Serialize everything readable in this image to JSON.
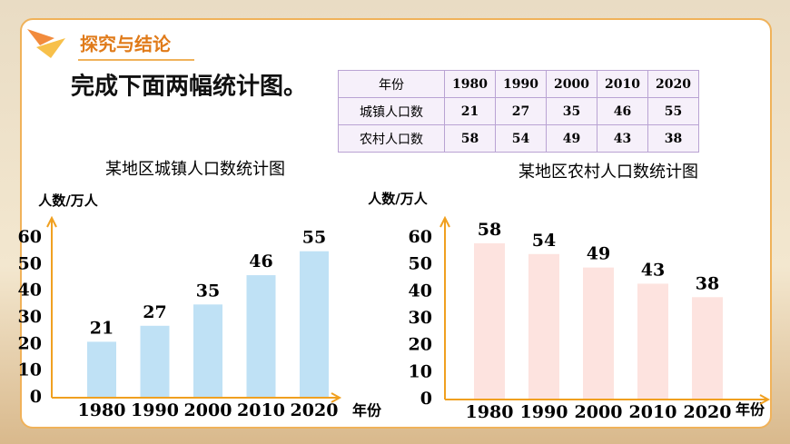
{
  "header": {
    "title": "探究与结论"
  },
  "instruction": "完成下面两幅统计图。",
  "table": {
    "rows": [
      [
        "年份",
        1980,
        1990,
        2000,
        2010,
        2020
      ],
      [
        "城镇人口数",
        21,
        27,
        35,
        46,
        55
      ],
      [
        "农村人口数",
        58,
        54,
        49,
        43,
        38
      ]
    ]
  },
  "chart_data": [
    {
      "type": "bar",
      "title": "某地区城镇人口数统计图",
      "y_label": "人数/万人",
      "x_label": "年份",
      "categories": [
        "1980",
        "1990",
        "2000",
        "2010",
        "2020"
      ],
      "values": [
        21,
        27,
        35,
        46,
        55
      ],
      "color": "#bfe1f5",
      "ylim": [
        0,
        60
      ],
      "yticks": [
        0,
        10,
        20,
        30,
        40,
        50,
        60
      ]
    },
    {
      "type": "bar",
      "title": "某地区农村人口数统计图",
      "y_label": "人数/万人",
      "x_label": "年份",
      "categories": [
        "1980",
        "1990",
        "2000",
        "2010",
        "2020"
      ],
      "values": [
        58,
        54,
        49,
        43,
        38
      ],
      "color": "#fde3df",
      "ylim": [
        0,
        60
      ],
      "yticks": [
        0,
        10,
        20,
        30,
        40,
        50,
        60
      ]
    }
  ]
}
